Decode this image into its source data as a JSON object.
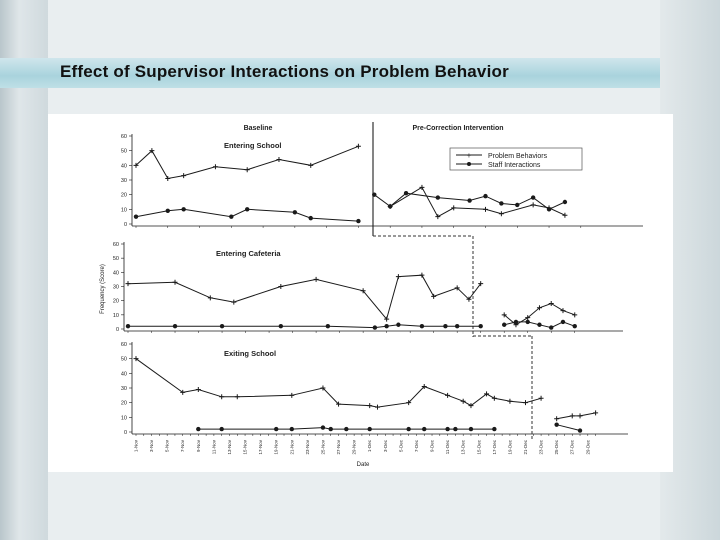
{
  "slide": {
    "title": "Effect of Supervisor Interactions on Problem Behavior"
  },
  "chart_data": {
    "type": "line",
    "phases": [
      "Baseline",
      "Pre-Correction Intervention"
    ],
    "legend": [
      "Problem Behaviors",
      "Staff Interactions"
    ],
    "ylabel": "Frequency (Score)",
    "xlabel": "Date",
    "x_ticks": [
      "1-Nov",
      "2-Nov",
      "3-Nov",
      "4-Nov",
      "5-Nov",
      "6-Nov",
      "7-Nov",
      "8-Nov",
      "9-Nov",
      "10-Nov",
      "11-Nov",
      "12-Nov",
      "13-Nov",
      "14-Nov",
      "15-Nov",
      "16-Nov",
      "17-Nov",
      "18-Nov",
      "19-Nov",
      "20-Nov",
      "21-Nov",
      "22-Nov",
      "23-Nov",
      "24-Nov",
      "25-Nov",
      "26-Nov",
      "27-Nov",
      "28-Nov",
      "29-Nov",
      "30-Nov",
      "1-Dec",
      "2-Dec",
      "3-Dec",
      "4-Dec",
      "5-Dec",
      "6-Dec",
      "7-Dec",
      "8-Dec",
      "9-Dec",
      "10-Dec",
      "11-Dec",
      "12-Dec",
      "13-Dec",
      "14-Dec",
      "15-Dec",
      "16-Dec",
      "17-Dec",
      "18-Dec",
      "19-Dec",
      "20-Dec",
      "21-Dec",
      "22-Dec",
      "23-Dec",
      "24-Dec",
      "25-Dec",
      "26-Dec",
      "27-Dec",
      "28-Dec",
      "29-Dec",
      "30-Dec"
    ],
    "colors": {
      "line": "#1a1a1a",
      "phase_line": "#333333"
    },
    "panels": [
      {
        "title": "Entering School",
        "ylim": [
          0,
          60
        ],
        "yticks": [
          "0",
          "10",
          "20",
          "30",
          "40",
          "50",
          "60"
        ],
        "series": [
          {
            "name": "Problem Behaviors",
            "marker": "plus",
            "baseline": [
              [
                0,
                40
              ],
              [
                1,
                50
              ],
              [
                2,
                31
              ],
              [
                3,
                33
              ],
              [
                5,
                39
              ],
              [
                7,
                37
              ],
              [
                9,
                44
              ],
              [
                11,
                40
              ],
              [
                14,
                53
              ]
            ],
            "intervention": [
              [
                16,
                12
              ],
              [
                18,
                25
              ],
              [
                19,
                5
              ],
              [
                20,
                11
              ],
              [
                22,
                10
              ],
              [
                23,
                7
              ],
              [
                25,
                13
              ],
              [
                26,
                11
              ],
              [
                27,
                6
              ]
            ]
          },
          {
            "name": "Staff Interactions",
            "marker": "dot",
            "baseline": [
              [
                0,
                5
              ],
              [
                2,
                9
              ],
              [
                3,
                10
              ],
              [
                6,
                5
              ],
              [
                7,
                10
              ],
              [
                10,
                8
              ],
              [
                11,
                4
              ],
              [
                14,
                2
              ]
            ],
            "intervention": [
              [
                15,
                20
              ],
              [
                16,
                12
              ],
              [
                17,
                21
              ],
              [
                19,
                18
              ],
              [
                21,
                16
              ],
              [
                22,
                19
              ],
              [
                23,
                14
              ],
              [
                24,
                13
              ],
              [
                25,
                18
              ],
              [
                26,
                10
              ],
              [
                27,
                15
              ]
            ]
          }
        ]
      },
      {
        "title": "Entering Cafeteria",
        "ylim": [
          0,
          60
        ],
        "yticks": [
          "0",
          "10",
          "20",
          "30",
          "40",
          "50",
          "60"
        ],
        "series": [
          {
            "name": "Problem Behaviors",
            "marker": "plus",
            "baseline": [
              [
                0,
                32
              ],
              [
                4,
                33
              ],
              [
                7,
                22
              ],
              [
                9,
                19
              ],
              [
                13,
                30
              ],
              [
                16,
                35
              ],
              [
                20,
                27
              ],
              [
                22,
                7
              ],
              [
                23,
                37
              ],
              [
                25,
                38
              ],
              [
                26,
                23
              ],
              [
                28,
                29
              ],
              [
                29,
                21
              ],
              [
                30,
                32
              ]
            ],
            "intervention": [
              [
                32,
                10
              ],
              [
                33,
                3
              ],
              [
                34,
                8
              ],
              [
                35,
                15
              ],
              [
                36,
                18
              ],
              [
                37,
                13
              ],
              [
                38,
                10
              ]
            ]
          },
          {
            "name": "Staff Interactions",
            "marker": "dot",
            "baseline": [
              [
                0,
                2
              ],
              [
                4,
                2
              ],
              [
                8,
                2
              ],
              [
                13,
                2
              ],
              [
                17,
                2
              ],
              [
                21,
                1
              ],
              [
                22,
                2
              ],
              [
                23,
                3
              ],
              [
                25,
                2
              ],
              [
                27,
                2
              ],
              [
                28,
                2
              ],
              [
                30,
                2
              ]
            ],
            "intervention": [
              [
                32,
                3
              ],
              [
                33,
                5
              ],
              [
                34,
                5
              ],
              [
                35,
                3
              ],
              [
                36,
                1
              ],
              [
                37,
                5
              ],
              [
                38,
                2
              ]
            ]
          }
        ]
      },
      {
        "title": "Exiting School",
        "ylim": [
          0,
          60
        ],
        "yticks": [
          "0",
          "10",
          "20",
          "30",
          "40",
          "50",
          "60"
        ],
        "series": [
          {
            "name": "Problem Behaviors",
            "marker": "plus",
            "baseline": [
              [
                0,
                50
              ],
              [
                6,
                27
              ],
              [
                8,
                29
              ],
              [
                11,
                24
              ],
              [
                13,
                24
              ],
              [
                20,
                25
              ],
              [
                24,
                30
              ],
              [
                26,
                19
              ],
              [
                30,
                18
              ],
              [
                31,
                17
              ],
              [
                35,
                20
              ],
              [
                37,
                31
              ],
              [
                40,
                25
              ],
              [
                42,
                21
              ],
              [
                43,
                18
              ],
              [
                45,
                26
              ],
              [
                46,
                23
              ],
              [
                48,
                21
              ],
              [
                50,
                20
              ],
              [
                52,
                23
              ]
            ],
            "intervention": [
              [
                54,
                9
              ],
              [
                56,
                11
              ],
              [
                57,
                11
              ],
              [
                59,
                13
              ]
            ]
          },
          {
            "name": "Staff Interactions",
            "marker": "dot",
            "baseline": [
              [
                8,
                2
              ],
              [
                11,
                2
              ],
              [
                18,
                2
              ],
              [
                20,
                2
              ],
              [
                24,
                3
              ],
              [
                25,
                2
              ],
              [
                27,
                2
              ],
              [
                30,
                2
              ],
              [
                35,
                2
              ],
              [
                37,
                2
              ],
              [
                40,
                2
              ],
              [
                41,
                2
              ],
              [
                43,
                2
              ],
              [
                46,
                2
              ]
            ],
            "intervention": [
              [
                54,
                5
              ],
              [
                57,
                1
              ]
            ]
          }
        ]
      }
    ]
  }
}
